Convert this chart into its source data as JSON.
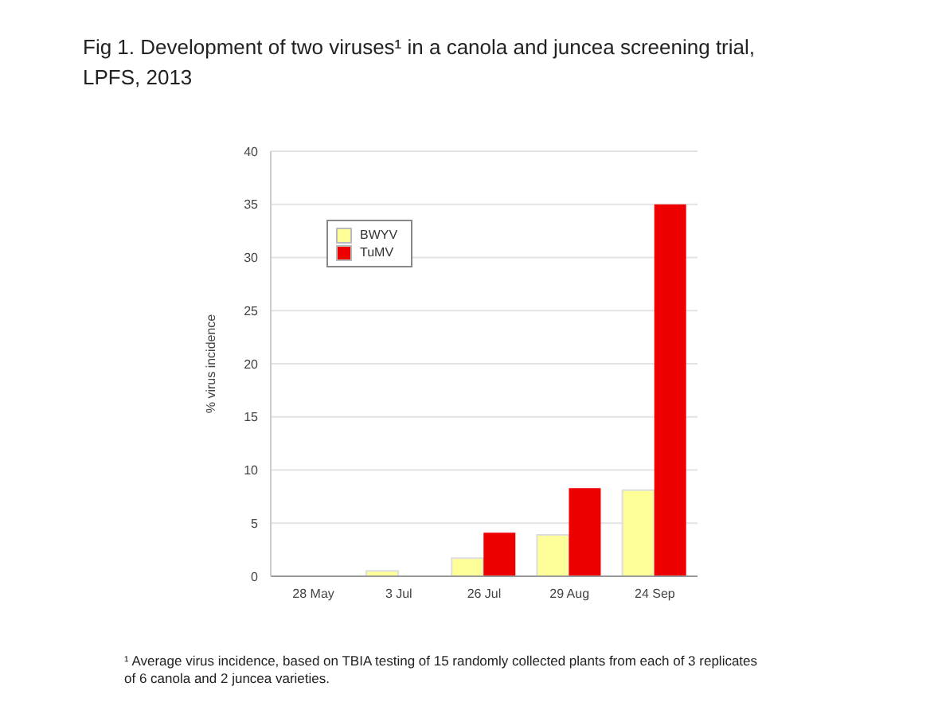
{
  "chart_data": {
    "type": "bar",
    "title": "Fig 1.  Development of two viruses¹ in a canola and juncea screening trial, LPFS, 2013",
    "ylabel": "% virus incidence",
    "categories": [
      "28 May",
      "3 Jul",
      "26 Jul",
      "29 Aug",
      "24 Sep"
    ],
    "series": [
      {
        "name": "BWYV",
        "color": "#ffff99",
        "values": [
          0,
          0.5,
          1.7,
          3.9,
          8.1
        ]
      },
      {
        "name": "TuMV",
        "color": "#ee0000",
        "values": [
          0,
          0,
          4.1,
          8.3,
          35
        ]
      }
    ],
    "ylim": [
      0,
      40
    ],
    "yticks": [
      0,
      5,
      10,
      15,
      20,
      25,
      30,
      35,
      40
    ],
    "grid": "y",
    "legend": "top left",
    "annotations": [
      "¹  Average virus incidence, based on TBIA testing of 15 randomly collected plants from each of 3 replicates of 6 canola and 2 juncea varieties."
    ]
  }
}
